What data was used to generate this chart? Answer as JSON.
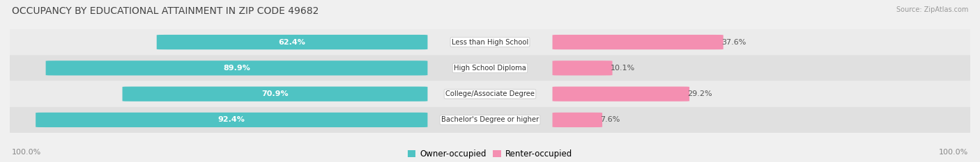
{
  "title": "OCCUPANCY BY EDUCATIONAL ATTAINMENT IN ZIP CODE 49682",
  "source": "Source: ZipAtlas.com",
  "categories": [
    "Less than High School",
    "High School Diploma",
    "College/Associate Degree",
    "Bachelor's Degree or higher"
  ],
  "owner_pct": [
    62.4,
    89.9,
    70.9,
    92.4
  ],
  "renter_pct": [
    37.6,
    10.1,
    29.2,
    7.6
  ],
  "owner_color": "#4fc3c3",
  "renter_color": "#f48fb1",
  "background_color": "#f0f0f0",
  "row_bg_color_odd": "#e8e8e8",
  "row_bg_color_even": "#d8d8d8",
  "axis_label_left": "100.0%",
  "axis_label_right": "100.0%",
  "title_fontsize": 10,
  "label_fontsize": 8,
  "tick_fontsize": 8,
  "legend_label_owner": "Owner-occupied",
  "legend_label_renter": "Renter-occupied"
}
